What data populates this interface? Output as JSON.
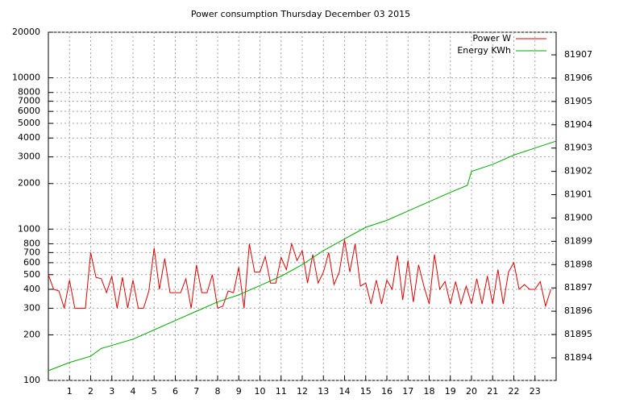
{
  "chart_data": {
    "type": "line",
    "title": "Power consumption Thursday December 03 2015",
    "log_y": true,
    "grid": true,
    "legend": "top-right",
    "xlim": [
      0,
      24
    ],
    "xticks": [
      1,
      2,
      3,
      4,
      5,
      6,
      7,
      8,
      9,
      10,
      11,
      12,
      13,
      14,
      15,
      16,
      17,
      18,
      19,
      20,
      21,
      22,
      23
    ],
    "ylim": [
      100,
      20000
    ],
    "yticks": [
      100,
      200,
      300,
      400,
      500,
      600,
      700,
      800,
      1000,
      2000,
      3000,
      4000,
      5000,
      6000,
      7000,
      8000,
      10000,
      20000
    ],
    "y2lim": [
      81893.03,
      81907.97
    ],
    "y2ticks": [
      81894,
      81895,
      81896,
      81897,
      81898,
      81899,
      81900,
      81901,
      81902,
      81903,
      81904,
      81905,
      81906,
      81907
    ],
    "series": [
      {
        "name": "Power W",
        "color": "#dd0000",
        "x": [
          0,
          0.25,
          0.5,
          0.75,
          1,
          1.25,
          1.5,
          1.75,
          2,
          2.25,
          2.5,
          2.75,
          3,
          3.25,
          3.5,
          3.75,
          4,
          4.25,
          4.5,
          4.75,
          5,
          5.25,
          5.5,
          5.75,
          6,
          6.25,
          6.5,
          6.75,
          7,
          7.25,
          7.5,
          7.75,
          8,
          8.25,
          8.5,
          8.75,
          9,
          9.25,
          9.5,
          9.75,
          10,
          10.25,
          10.5,
          10.75,
          11,
          11.25,
          11.5,
          11.75,
          12,
          12.25,
          12.5,
          12.75,
          13,
          13.25,
          13.5,
          13.75,
          14,
          14.25,
          14.5,
          14.75,
          15,
          15.25,
          15.5,
          15.75,
          16,
          16.25,
          16.5,
          16.75,
          17,
          17.25,
          17.5,
          17.75,
          18,
          18.25,
          18.5,
          18.75,
          19,
          19.25,
          19.5,
          19.75,
          20,
          20.25,
          20.5,
          20.75,
          21,
          21.25,
          21.5,
          21.75,
          22,
          22.25,
          22.5,
          22.75,
          23,
          23.25,
          23.5,
          23.75
        ],
        "values": [
          500,
          400,
          390,
          300,
          460,
          300,
          300,
          300,
          700,
          480,
          470,
          380,
          490,
          300,
          480,
          300,
          460,
          300,
          300,
          390,
          750,
          400,
          640,
          380,
          380,
          380,
          470,
          300,
          580,
          380,
          380,
          500,
          300,
          310,
          390,
          380,
          560,
          300,
          800,
          520,
          520,
          660,
          440,
          440,
          650,
          540,
          800,
          620,
          720,
          440,
          680,
          440,
          520,
          700,
          430,
          520,
          850,
          520,
          800,
          420,
          440,
          320,
          460,
          320,
          460,
          400,
          670,
          340,
          620,
          330,
          580,
          420,
          320,
          680,
          400,
          450,
          320,
          450,
          320,
          420,
          320,
          470,
          320,
          490,
          320,
          540,
          320,
          520,
          600,
          400,
          430,
          400,
          400,
          450,
          310,
          400
        ]
      },
      {
        "name": "Energy KWh",
        "color": "#00aa00",
        "axis": "y2",
        "x": [
          0,
          1,
          2,
          2.5,
          4,
          5,
          6,
          7,
          8,
          9,
          10,
          11,
          12,
          13,
          14,
          15,
          16,
          17,
          18,
          19,
          19.8,
          20,
          21,
          22,
          23,
          24
        ],
        "values": [
          81893.45,
          81893.8,
          81894.07,
          81894.4,
          81894.8,
          81895.2,
          81895.6,
          81896.0,
          81896.4,
          81896.7,
          81897.1,
          81897.5,
          81898.0,
          81898.6,
          81899.1,
          81899.6,
          81899.9,
          81900.3,
          81900.7,
          81901.1,
          81901.4,
          81902.0,
          81902.3,
          81902.7,
          81903.0,
          81903.3
        ]
      }
    ]
  }
}
